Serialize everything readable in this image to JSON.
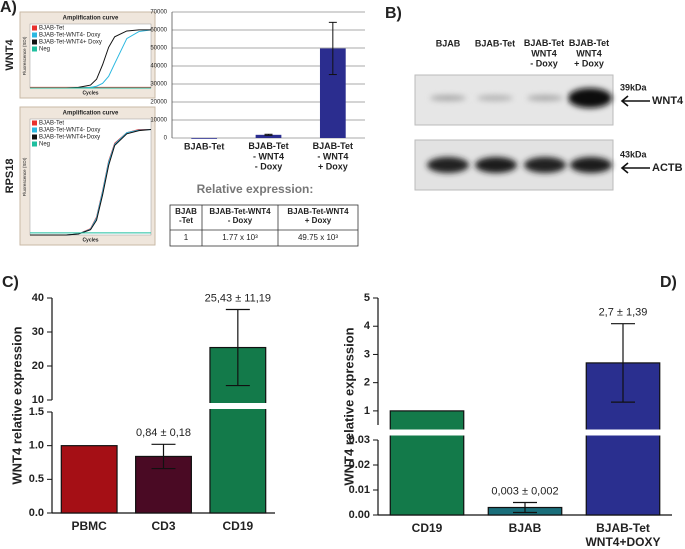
{
  "chart_data": [
    {
      "type": "line",
      "panel_label": "A)",
      "gene": "WNT4",
      "title": "Amplification curve",
      "xlabel": "Cycles",
      "ylabel": "Fluorescence (SDI)",
      "x": [
        0,
        4,
        8,
        12,
        16,
        20,
        22,
        24,
        26,
        28,
        32,
        36,
        40
      ],
      "xlim": [
        0,
        40
      ],
      "ylim": [
        0,
        1.1
      ],
      "legend": "upper left",
      "series": [
        {
          "name": "BJAB-Tet",
          "color": "#e8312e",
          "values": [
            0.01,
            0.01,
            0.01,
            0.01,
            0.01,
            0.01,
            0.01,
            0.01,
            0.01,
            0.01,
            0.01,
            0.01,
            0.01
          ]
        },
        {
          "name": "BJAB-Tet-WNT4- Doxy",
          "color": "#2bb8e0",
          "values": [
            0,
            0,
            0,
            0,
            0,
            0.01,
            0.03,
            0.08,
            0.2,
            0.42,
            0.85,
            0.97,
            1.0
          ]
        },
        {
          "name": "BJAB-Tet-WNT4+ Doxy",
          "color": "#111111",
          "values": [
            0,
            0,
            0,
            0,
            0.01,
            0.05,
            0.15,
            0.4,
            0.7,
            0.88,
            0.98,
            1.0,
            1.0
          ]
        },
        {
          "name": "Neg",
          "color": "#1fbf9f",
          "values": [
            0,
            0,
            0,
            0,
            0,
            0,
            0,
            0,
            0,
            0,
            0,
            0,
            0
          ]
        }
      ]
    },
    {
      "type": "line",
      "gene": "RPS18",
      "title": "Amplification curve",
      "xlabel": "Cycles",
      "ylabel": "Fluorescence (SDI)",
      "x": [
        0,
        4,
        8,
        12,
        16,
        20,
        22,
        24,
        26,
        28,
        32,
        36,
        40
      ],
      "xlim": [
        0,
        40
      ],
      "ylim": [
        0,
        1.1
      ],
      "legend": "upper left",
      "series": [
        {
          "name": "BJAB-Tet",
          "color": "#e8312e",
          "values": [
            0,
            0,
            0,
            0,
            0.01,
            0.06,
            0.17,
            0.42,
            0.7,
            0.87,
            0.97,
            1.0,
            1.0
          ]
        },
        {
          "name": "BJAB-Tet-WNT4- Doxy",
          "color": "#2bb8e0",
          "values": [
            0,
            0,
            0,
            0,
            0.01,
            0.055,
            0.16,
            0.41,
            0.69,
            0.86,
            0.97,
            0.995,
            1.0
          ]
        },
        {
          "name": "BJAB-Tet-WNT4+Doxy",
          "color": "#111111",
          "values": [
            0,
            0,
            0,
            0,
            0.01,
            0.05,
            0.14,
            0.38,
            0.66,
            0.85,
            0.96,
            0.99,
            1.0
          ]
        },
        {
          "name": "Neg",
          "color": "#1fbf9f",
          "values": [
            0.02,
            0.02,
            0.02,
            0.02,
            0.02,
            0.02,
            0.02,
            0.02,
            0.02,
            0.02,
            0.02,
            0.02,
            0.02
          ]
        }
      ]
    },
    {
      "type": "bar",
      "categories": [
        "BJAB-Tet",
        "BJAB-Tet\n- WNT4\n- Doxy",
        "BJAB-Tet\n- WNT4\n+ Doxy"
      ],
      "values": [
        1,
        1770,
        49750
      ],
      "errors": [
        null,
        300,
        14500
      ],
      "color": "#2b2d8f",
      "ylim": [
        0,
        70000
      ],
      "yticks": [
        0,
        10000,
        20000,
        30000,
        40000,
        50000,
        60000,
        70000
      ],
      "grid": true
    },
    {
      "type": "bar",
      "panel_label": "C)",
      "ylabel": "WNT4 relative expression",
      "categories": [
        "PBMC",
        "CD3",
        "CD19"
      ],
      "values": [
        1,
        0.84,
        25.43
      ],
      "errors": [
        null,
        0.18,
        11.19
      ],
      "value_labels": [
        null,
        "0,84 ± 0,18",
        "25,43 ± 11,19"
      ],
      "colors": [
        "#a50f15",
        "#4a0a24",
        "#137a4a"
      ],
      "ylim_lower": [
        0,
        1.5
      ],
      "ylim_upper": [
        10,
        40
      ],
      "yticks": [
        {
          "value": 0,
          "label": "0.0"
        },
        {
          "value": 0.5,
          "label": "0.5"
        },
        {
          "value": 1,
          "label": "1.0"
        },
        {
          "value": 1.5,
          "label": "1.5"
        },
        10,
        20,
        30,
        40
      ]
    },
    {
      "type": "bar",
      "panel_label": "D)",
      "ylabel": "WNT4 relative expression",
      "categories": [
        "CD19",
        "BJAB",
        "BJAB-Tet\nWNT4+DOXY"
      ],
      "values": [
        1,
        0.003,
        2.7
      ],
      "errors": [
        null,
        0.002,
        1.39
      ],
      "value_labels": [
        null,
        "0,003 ± 0,002",
        "2,7 ± 1,39"
      ],
      "colors": [
        "#137a4a",
        "#1a6e7a",
        "#2a2f8f"
      ],
      "ylim_lower": [
        0,
        0.03
      ],
      "ylim_upper": [
        0.5,
        5
      ],
      "yticks": [
        {
          "value": 0,
          "label": "0.00"
        },
        {
          "value": 0.01,
          "label": "0.01"
        },
        {
          "value": 0.02,
          "label": "0.02"
        },
        {
          "value": 0.03,
          "label": "0.03"
        },
        1,
        2,
        3,
        4,
        5
      ]
    }
  ],
  "table": {
    "title": "Relative expression:",
    "rows": [
      [
        "BJAB\n-Tet",
        "BJAB-Tet-WNT4\n- Doxy",
        "BJAB-Tet-WNT4\n+ Doxy"
      ],
      [
        "1",
        "1.77 x 10³",
        "49.75 x 10³"
      ]
    ]
  },
  "blot": {
    "panel_label": "B)",
    "lanes": [
      "BJAB",
      "BJAB-Tet",
      "BJAB-Tet\nWNT4\n- Doxy",
      "BJAB-Tet\nWNT4\n+ Doxy"
    ],
    "markers": [
      {
        "size": "39kDa",
        "protein": "WNT4"
      },
      {
        "size": "43kDa",
        "protein": "ACTB"
      }
    ]
  }
}
